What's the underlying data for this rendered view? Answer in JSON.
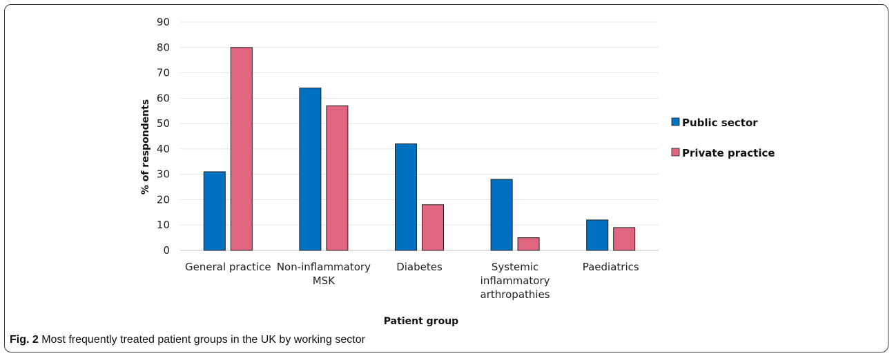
{
  "chart_data": {
    "type": "bar",
    "categories": [
      "General practice",
      "Non-inflammatory MSK",
      "Diabetes",
      "Systemic inflammatory arthropathies",
      "Paediatrics"
    ],
    "category_lines": [
      [
        "General practice"
      ],
      [
        "Non-inflammatory",
        "MSK"
      ],
      [
        "Diabetes"
      ],
      [
        "Systemic",
        "inflammatory",
        "arthropathies"
      ],
      [
        "Paediatrics"
      ]
    ],
    "series": [
      {
        "name": "Public sector",
        "values": [
          31,
          64,
          42,
          28,
          12
        ],
        "color": "#0070C0"
      },
      {
        "name": "Private practice",
        "values": [
          80,
          57,
          18,
          5,
          9
        ],
        "color": "#E06680"
      }
    ],
    "xlabel": "Patient group",
    "ylabel": "% of respondents",
    "ylim": [
      0,
      90
    ],
    "yticks": [
      0,
      10,
      20,
      30,
      40,
      50,
      60,
      70,
      80,
      90
    ],
    "grid": true,
    "legend": "right"
  },
  "caption": {
    "label": "Fig. 2",
    "text": " Most frequently treated patient groups in the UK by working sector"
  }
}
